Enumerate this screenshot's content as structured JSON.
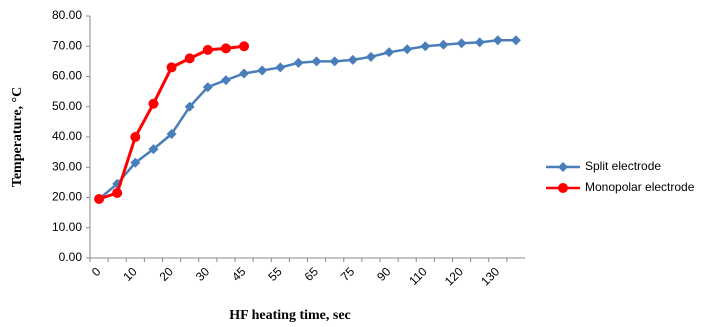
{
  "chart_data": {
    "type": "line",
    "x_label": "HF heating time, sec",
    "y_label": "Temperature, °C",
    "categories": [
      "0",
      null,
      "10",
      null,
      "20",
      null,
      "30",
      null,
      "45",
      null,
      "55",
      null,
      "65",
      null,
      "75",
      null,
      "90",
      null,
      "110",
      null,
      "120",
      null,
      "130",
      null
    ],
    "series": [
      {
        "name": "Split electrode",
        "color": "#4a7ebb",
        "marker": "diamond",
        "values": [
          19.5,
          24.5,
          31.5,
          36,
          41,
          50,
          56.5,
          58.8,
          61,
          62,
          63,
          64.5,
          65,
          65,
          65.5,
          66.5,
          68,
          69,
          70,
          70.5,
          71,
          71.3,
          72,
          72
        ]
      },
      {
        "name": "Monopolar electrode",
        "color": "#ff0000",
        "marker": "circle",
        "values": [
          19.5,
          21.5,
          40,
          51,
          63,
          66,
          68.8,
          69.3,
          70,
          null,
          null,
          null,
          null,
          null,
          null,
          null,
          null,
          null,
          null,
          null,
          null,
          null,
          null,
          null
        ]
      }
    ],
    "ylim": [
      0,
      80
    ],
    "yticks": [
      {
        "value": 0,
        "label": "0.00"
      },
      {
        "value": 10,
        "label": "10.00"
      },
      {
        "value": 20,
        "label": "20.00"
      },
      {
        "value": 30,
        "label": "30.00"
      },
      {
        "value": 40,
        "label": "40.00"
      },
      {
        "value": 50,
        "label": "50.00"
      },
      {
        "value": 60,
        "label": "60.00"
      },
      {
        "value": 70,
        "label": "70.00"
      },
      {
        "value": 80,
        "label": "80.00"
      }
    ],
    "grid": false,
    "legend": "right"
  }
}
